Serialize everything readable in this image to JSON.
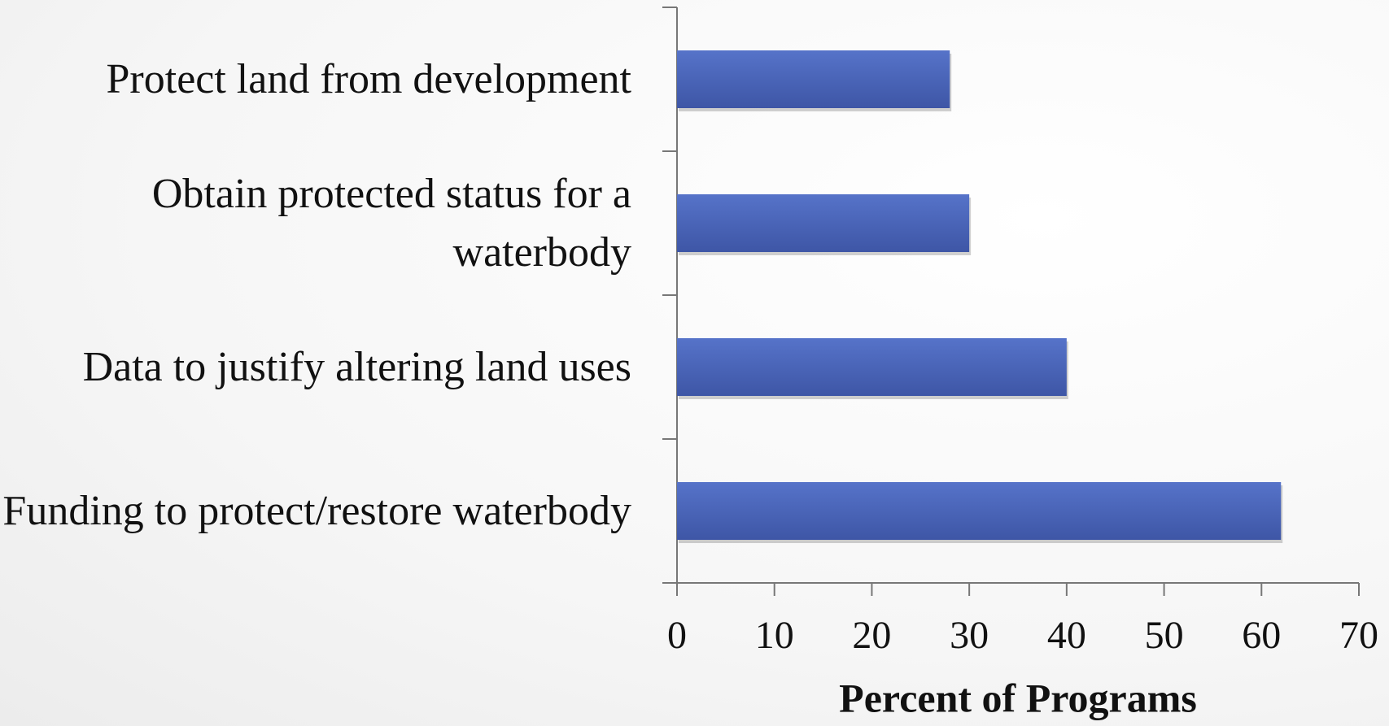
{
  "chart_data": {
    "type": "bar",
    "orientation": "horizontal",
    "categories": [
      "Protect land from development",
      "Obtain protected status for a waterbody",
      "Data to justify altering land uses",
      "Funding to protect/restore waterbody"
    ],
    "values": [
      28,
      30,
      40,
      62
    ],
    "color": "#4a64b8",
    "x_label": "Percent of Programs",
    "xlim": [
      0,
      70
    ],
    "xticks": [
      0,
      10,
      20,
      30,
      40,
      50,
      60,
      70
    ]
  }
}
